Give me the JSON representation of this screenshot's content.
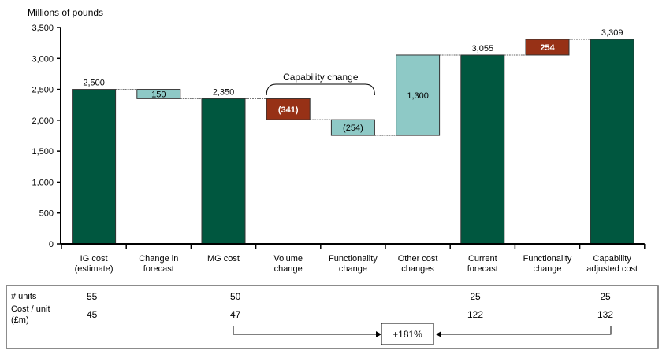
{
  "chart_data": {
    "type": "bar",
    "subtype": "waterfall",
    "ylabel": "Millions of pounds",
    "ylim": [
      0,
      3500
    ],
    "yticks": [
      0,
      500,
      1000,
      1500,
      2000,
      2500,
      3000,
      3500
    ],
    "ytick_labels": [
      "0",
      "500",
      "1,000",
      "1,500",
      "2,000",
      "2,500",
      "3,000",
      "3,500"
    ],
    "grid": false,
    "categories": [
      [
        "IG cost",
        "(estimate)"
      ],
      [
        "Change in",
        "forecast"
      ],
      [
        "MG cost"
      ],
      [
        "Volume",
        "change"
      ],
      [
        "Functionality",
        "change"
      ],
      [
        "Other cost",
        "changes"
      ],
      [
        "Current",
        "forecast"
      ],
      [
        "Functionality",
        "change"
      ],
      [
        "Capability",
        "adjusted cost"
      ]
    ],
    "bars": [
      {
        "kind": "total",
        "start": 0,
        "end": 2500,
        "label": "2,500",
        "label_pos": "above"
      },
      {
        "kind": "decrease",
        "start": 2500,
        "end": 2350,
        "label": "150",
        "label_pos": "inside"
      },
      {
        "kind": "total",
        "start": 0,
        "end": 2350,
        "label": "2,350",
        "label_pos": "above"
      },
      {
        "kind": "decrease-strong",
        "start": 2350,
        "end": 2009,
        "label": "(341)",
        "label_pos": "inside"
      },
      {
        "kind": "decrease",
        "start": 2009,
        "end": 1755,
        "label": "(254)",
        "label_pos": "inside"
      },
      {
        "kind": "increase",
        "start": 1755,
        "end": 3055,
        "label": "1,300",
        "label_pos": "inside"
      },
      {
        "kind": "total",
        "start": 0,
        "end": 3055,
        "label": "3,055",
        "label_pos": "above"
      },
      {
        "kind": "increase-strong",
        "start": 3055,
        "end": 3309,
        "label": "254",
        "label_pos": "inside"
      },
      {
        "kind": "total",
        "start": 0,
        "end": 3309,
        "label": "3,309",
        "label_pos": "above"
      }
    ],
    "colors": {
      "total": "#00573f",
      "decrease": "#8ec9c6",
      "increase": "#8ec9c6",
      "decrease-strong": "#973116",
      "increase-strong": "#973116"
    },
    "annotations": {
      "bracket_label": "Capability change",
      "bracket_span": [
        3,
        4
      ]
    }
  },
  "table": {
    "row_labels": [
      "# units",
      "Cost / unit",
      "(£m)"
    ],
    "units": [
      {
        "col": 0,
        "value": "55"
      },
      {
        "col": 2,
        "value": "50"
      },
      {
        "col": 6,
        "value": "25"
      },
      {
        "col": 8,
        "value": "25"
      }
    ],
    "cost_per_unit": [
      {
        "col": 0,
        "value": "45"
      },
      {
        "col": 2,
        "value": "47"
      },
      {
        "col": 6,
        "value": "122"
      },
      {
        "col": 8,
        "value": "132"
      }
    ],
    "change_label": "+181%"
  }
}
